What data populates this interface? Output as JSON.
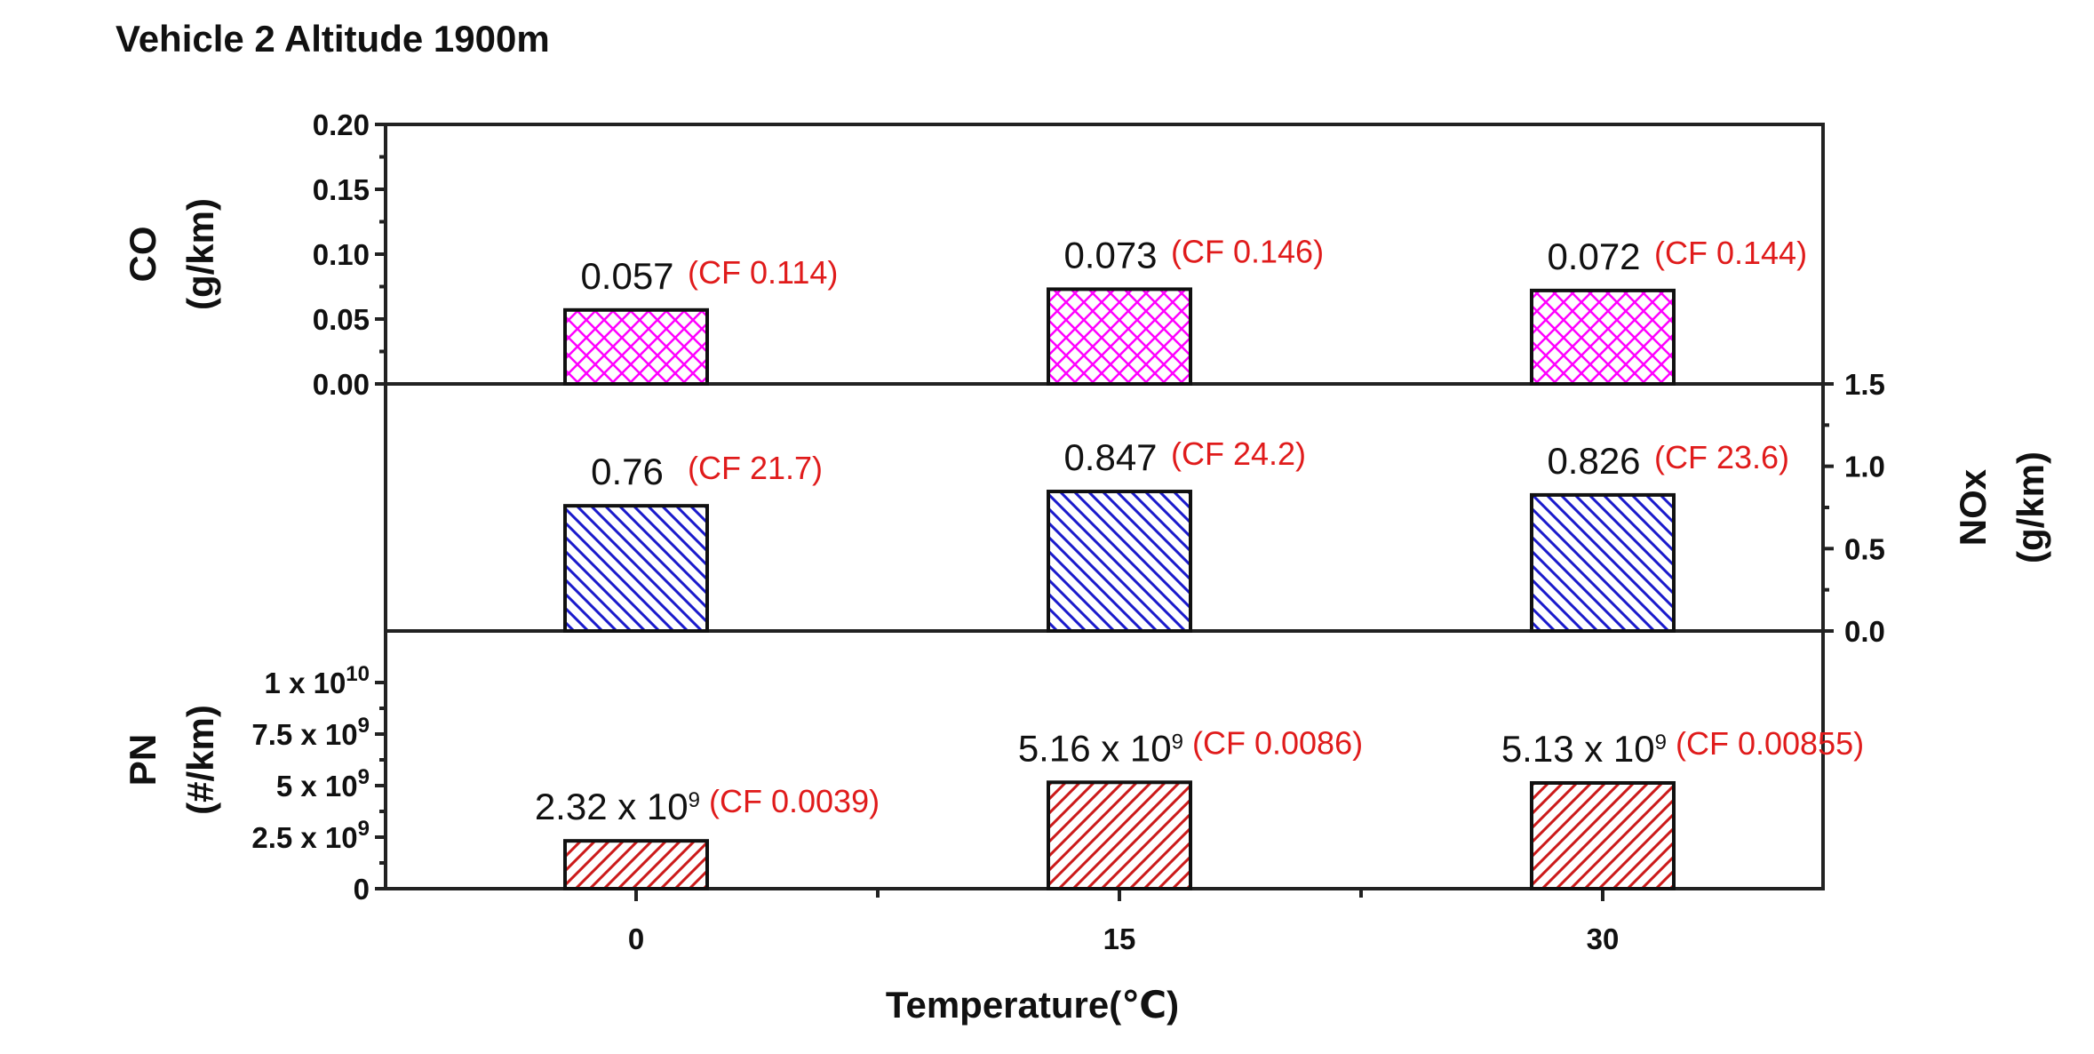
{
  "chart_data": {
    "type": "bar",
    "title": "Vehicle 2  Altitude 1900m",
    "xlabel": "Temperature(℃)",
    "categories": [
      "0",
      "15",
      "30"
    ],
    "panels": [
      {
        "id": "co",
        "ylabel": "CO",
        "yunit": "(g/km)",
        "ylim": [
          0,
          0.2
        ],
        "yticks": [
          "0.00",
          "0.05",
          "0.10",
          "0.15",
          "0.20"
        ],
        "ytick_values": [
          0,
          0.05,
          0.1,
          0.15,
          0.2
        ],
        "values": [
          0.057,
          0.073,
          0.072
        ],
        "value_labels": [
          "0.057",
          "0.073",
          "0.072"
        ],
        "cf_labels": [
          "(CF 0.114)",
          "(CF 0.146)",
          "(CF 0.144)"
        ],
        "pattern": "crosshatch",
        "color": "#ff00ff"
      },
      {
        "id": "nox",
        "ylabel": "NOx",
        "yunit": "(g/km)",
        "axis_side": "right",
        "ylim": [
          0,
          1.5
        ],
        "yticks": [
          "0.0",
          "0.5",
          "1.0",
          "1.5"
        ],
        "ytick_values": [
          0,
          0.5,
          1.0,
          1.5
        ],
        "values": [
          0.76,
          0.847,
          0.826
        ],
        "value_labels": [
          "0.76",
          "0.847",
          "0.826"
        ],
        "cf_labels": [
          "(CF 21.7)",
          "(CF 24.2)",
          "(CF 23.6)"
        ],
        "pattern": "backslash",
        "color": "#1a1acc"
      },
      {
        "id": "pn",
        "ylabel": "PN",
        "yunit": "(#/km)",
        "ylim": [
          0,
          12500000000
        ],
        "ytick_values": [
          0,
          2500000000,
          5000000000,
          7500000000,
          10000000000
        ],
        "ytick_mantissa": [
          "0",
          "2.5 x 10",
          "5 x 10",
          "7.5 x 10",
          "1 x 10"
        ],
        "ytick_exponent": [
          "",
          "9",
          "9",
          "9",
          "10"
        ],
        "values": [
          2320000000,
          5160000000,
          5130000000
        ],
        "value_mantissa": [
          "2.32 x 10",
          "5.16 x 10",
          "5.13 x 10"
        ],
        "value_exponent": [
          "9",
          "9",
          "9"
        ],
        "cf_labels": [
          "(CF 0.0039)",
          "(CF 0.0086)",
          "(CF 0.00855)"
        ],
        "pattern": "slash",
        "color": "#cc1a1a"
      }
    ]
  }
}
